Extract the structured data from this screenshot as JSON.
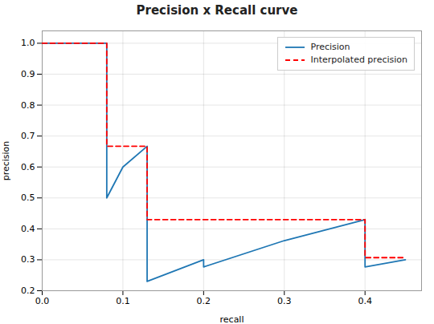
{
  "chart_data": {
    "type": "line",
    "title": "Precision x Recall curve",
    "xlabel": "recall",
    "ylabel": "precision",
    "xlim": [
      0.0,
      0.47
    ],
    "ylim": [
      0.2,
      1.04
    ],
    "xticks": [
      {
        "value": 0.0,
        "label": "0.0"
      },
      0.1,
      0.2,
      0.3,
      0.4
    ],
    "yticks": [
      0.2,
      0.3,
      0.4,
      0.5,
      0.6,
      0.7,
      0.8,
      0.9,
      {
        "value": 1.0,
        "label": "1.0"
      }
    ],
    "grid": true,
    "legend": "upper right",
    "series": [
      {
        "name": "Precision",
        "color": "#1f77b4",
        "line_style": "solid",
        "x": [
          0.0,
          0.08,
          0.08,
          0.1,
          0.13,
          0.13,
          0.13,
          0.2,
          0.2,
          0.3,
          0.4,
          0.4,
          0.45
        ],
        "values": [
          1.0,
          1.0,
          0.5,
          0.6,
          0.667,
          0.667,
          0.23,
          0.3,
          0.277,
          0.362,
          0.43,
          0.277,
          0.3
        ]
      },
      {
        "name": "Interpolated precision",
        "color": "#ff0000",
        "line_style": "dashed",
        "x": [
          0.0,
          0.08,
          0.08,
          0.13,
          0.13,
          0.4,
          0.4,
          0.45
        ],
        "values": [
          1.0,
          1.0,
          0.667,
          0.667,
          0.43,
          0.43,
          0.307,
          0.307
        ]
      }
    ]
  }
}
